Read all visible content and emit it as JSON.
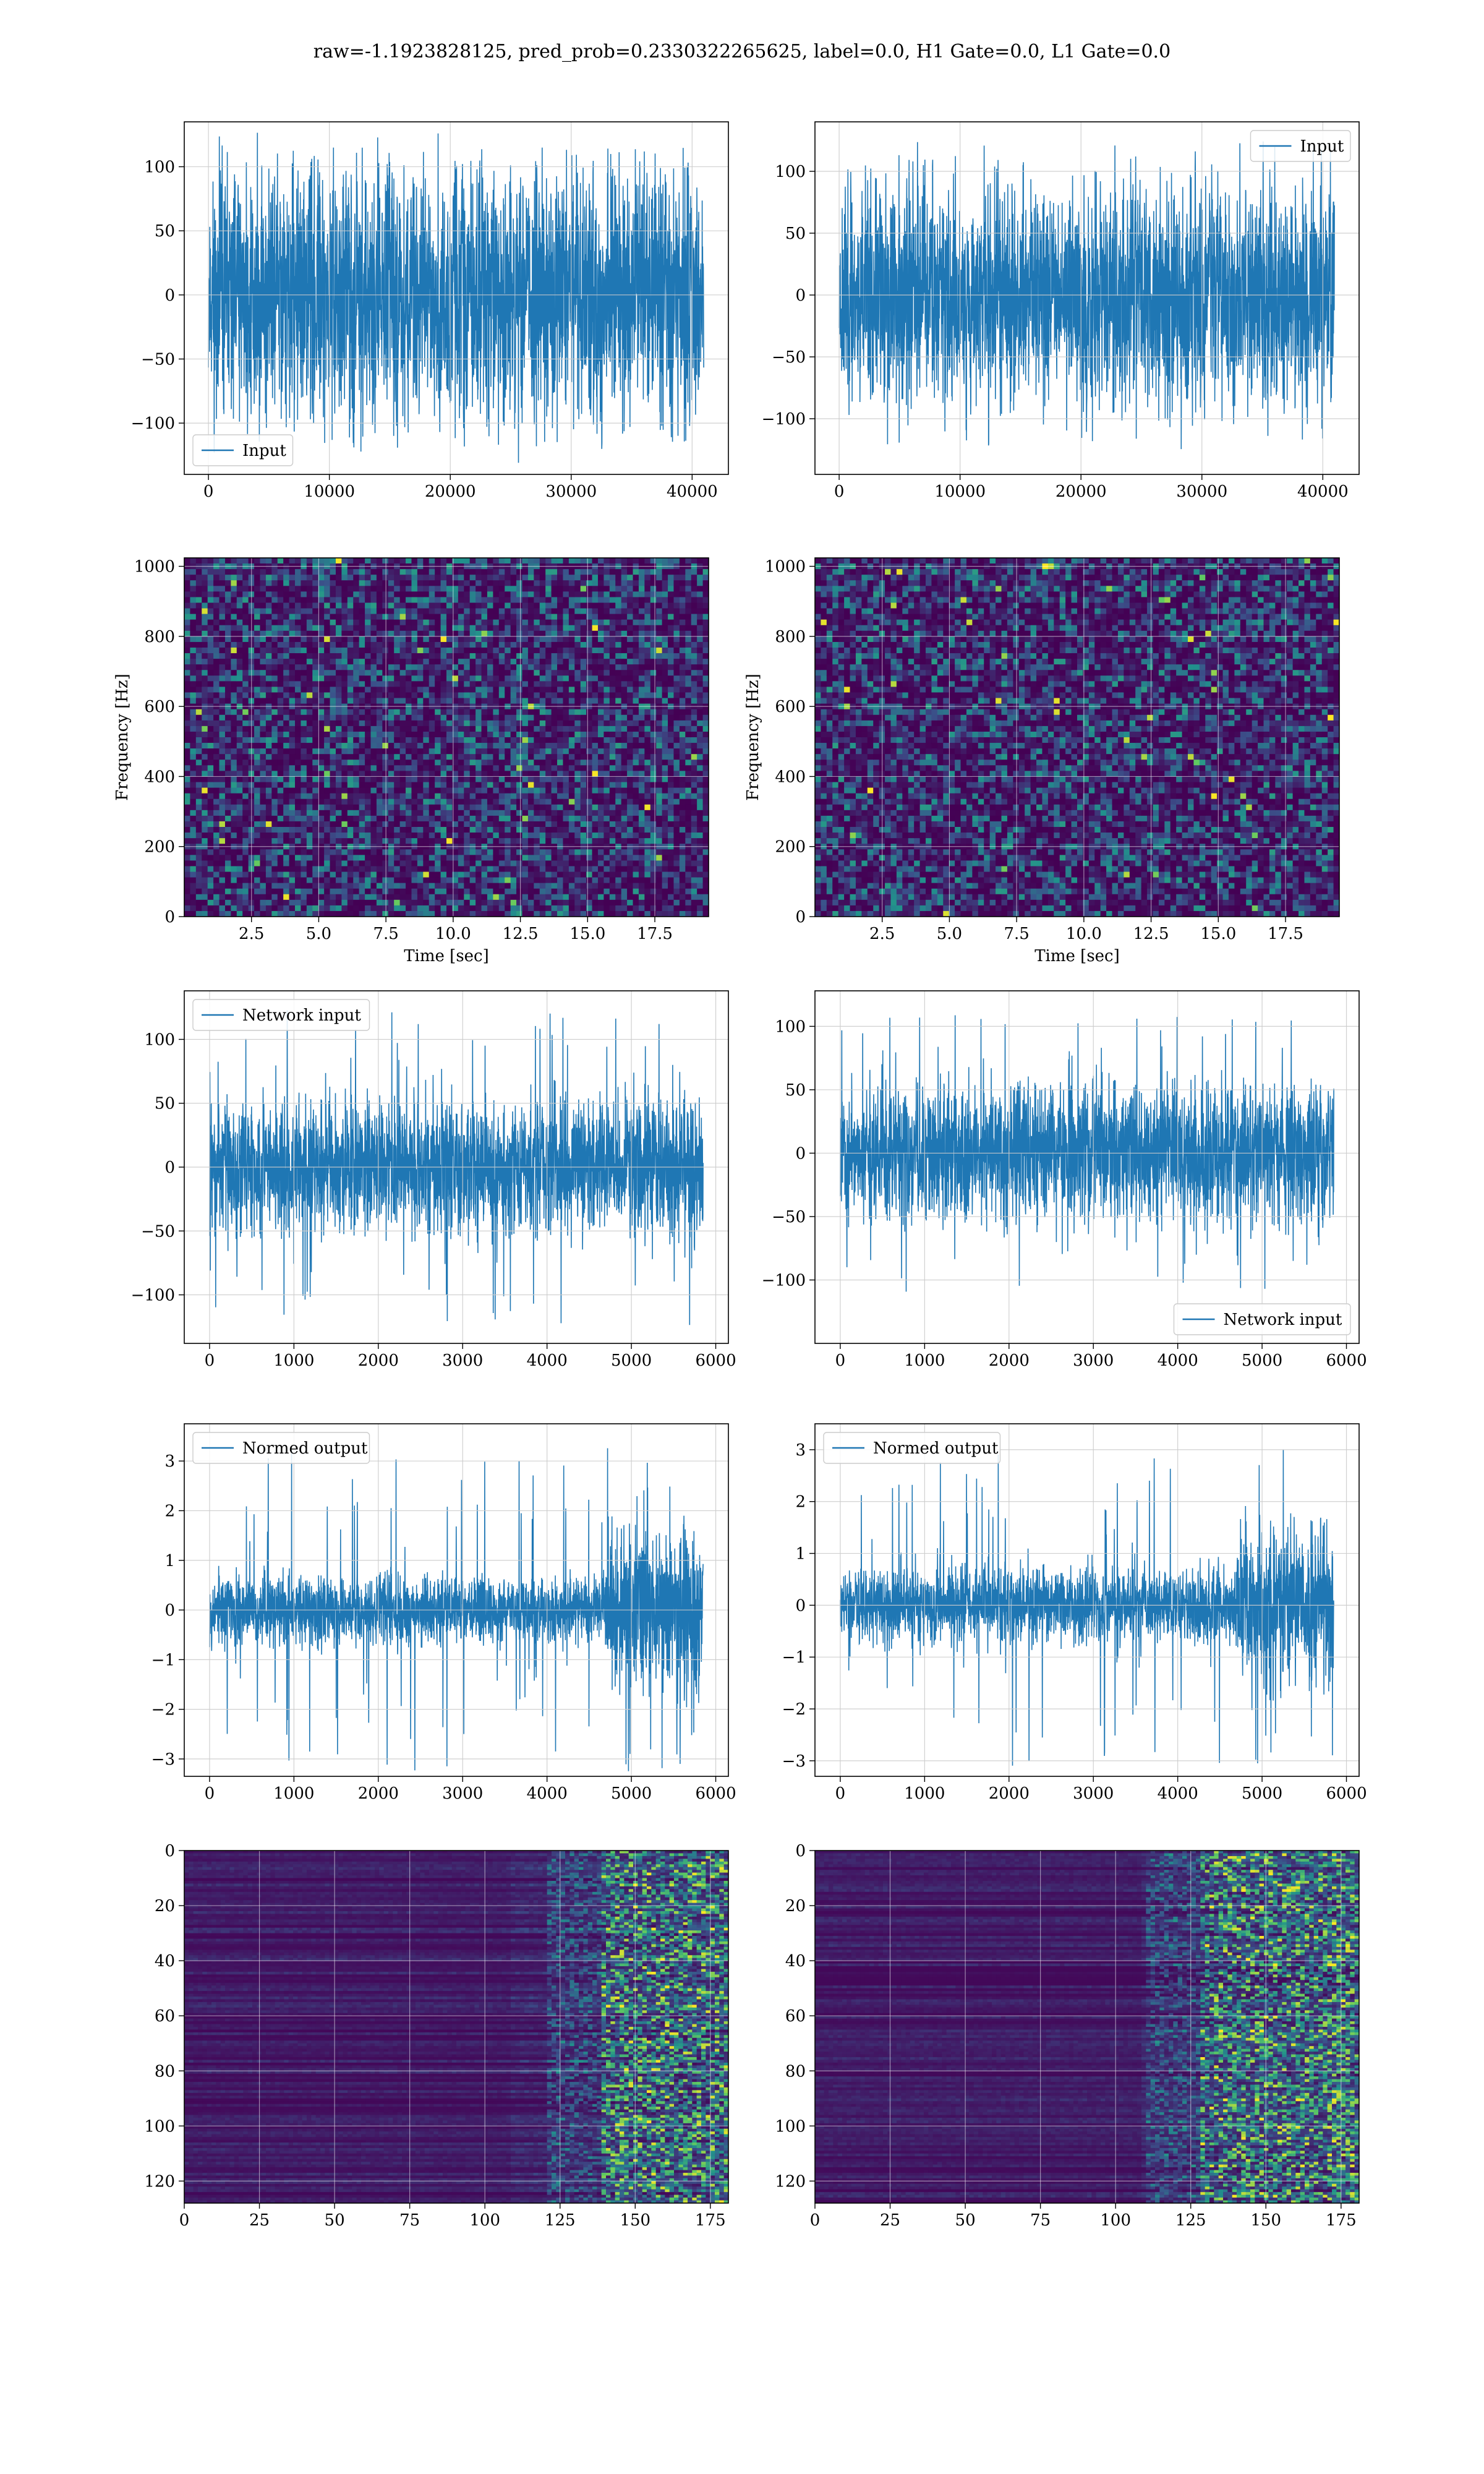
{
  "figure_title": "raw=-1.1923828125, pred_prob=0.2330322265625, label=0.0, H1 Gate=0.0, L1 Gate=0.0",
  "colors": {
    "series": "#1f77b4",
    "grid": "#cccccc",
    "viridis_dark": "#440154",
    "viridis_mid": "#3b528b",
    "viridis_teal": "#21918c",
    "viridis_green": "#5ec962",
    "viridis_yellow": "#fde725"
  },
  "chart_data": [
    {
      "id": "input_h1",
      "type": "line",
      "title": "",
      "xlabel": "",
      "ylabel": "",
      "legend": {
        "label": "Input",
        "loc": "lower-left"
      },
      "xlim": [
        -2000,
        43000
      ],
      "ylim": [
        -140,
        135
      ],
      "xticks": [
        0,
        10000,
        20000,
        30000,
        40000
      ],
      "xtick_labels": [
        "0",
        "10000",
        "20000",
        "30000",
        "40000"
      ],
      "yticks": [
        -100,
        -50,
        0,
        50,
        100
      ],
      "ytick_labels": [
        "−100",
        "−50",
        "0",
        "50",
        "100"
      ],
      "signal": {
        "x_start": 0,
        "x_end": 40960,
        "envelope": [
          [
            0,
            78
          ],
          [
            0.5,
            78
          ],
          [
            1,
            78
          ]
        ],
        "peak": 115,
        "seed": 11
      }
    },
    {
      "id": "input_l1",
      "type": "line",
      "title": "",
      "xlabel": "",
      "ylabel": "",
      "legend": {
        "label": "Input",
        "loc": "upper-right"
      },
      "xlim": [
        -2000,
        43000
      ],
      "ylim": [
        -145,
        140
      ],
      "xticks": [
        0,
        10000,
        20000,
        30000,
        40000
      ],
      "xtick_labels": [
        "0",
        "10000",
        "20000",
        "30000",
        "40000"
      ],
      "yticks": [
        -100,
        -50,
        0,
        50,
        100
      ],
      "ytick_labels": [
        "−100",
        "−50",
        "0",
        "50",
        "100"
      ],
      "signal": {
        "x_start": 0,
        "x_end": 40960,
        "envelope": [
          [
            0,
            72
          ],
          [
            0.5,
            72
          ],
          [
            1,
            72
          ]
        ],
        "peak": 125,
        "seed": 23
      }
    },
    {
      "id": "spec_h1",
      "type": "heatmap",
      "title": "",
      "xlabel": "Time [sec]",
      "ylabel": "Frequency [Hz]",
      "xlim": [
        0,
        19.5
      ],
      "ylim": [
        0,
        1024
      ],
      "xticks": [
        2.5,
        5.0,
        7.5,
        10.0,
        12.5,
        15.0,
        17.5
      ],
      "xtick_labels": [
        "2.5",
        "5.0",
        "7.5",
        "10.0",
        "12.5",
        "15.0",
        "17.5"
      ],
      "yticks": [
        0,
        200,
        400,
        600,
        800,
        1000
      ],
      "ytick_labels": [
        "0",
        "200",
        "400",
        "600",
        "800",
        "1000"
      ],
      "heat": {
        "mode": "noise",
        "seed": 5
      }
    },
    {
      "id": "spec_l1",
      "type": "heatmap",
      "title": "",
      "xlabel": "Time [sec]",
      "ylabel": "Frequency [Hz]",
      "xlim": [
        0,
        19.5
      ],
      "ylim": [
        0,
        1024
      ],
      "xticks": [
        2.5,
        5.0,
        7.5,
        10.0,
        12.5,
        15.0,
        17.5
      ],
      "xtick_labels": [
        "2.5",
        "5.0",
        "7.5",
        "10.0",
        "12.5",
        "15.0",
        "17.5"
      ],
      "yticks": [
        0,
        200,
        400,
        600,
        800,
        1000
      ],
      "ytick_labels": [
        "0",
        "200",
        "400",
        "600",
        "800",
        "1000"
      ],
      "heat": {
        "mode": "noise",
        "seed": 9
      }
    },
    {
      "id": "net_h1",
      "type": "line",
      "title": "",
      "xlabel": "",
      "ylabel": "",
      "legend": {
        "label": "Network input",
        "loc": "upper-left"
      },
      "xlim": [
        -300,
        6150
      ],
      "ylim": [
        -138,
        138
      ],
      "xticks": [
        0,
        1000,
        2000,
        3000,
        4000,
        5000,
        6000
      ],
      "xtick_labels": [
        "0",
        "1000",
        "2000",
        "3000",
        "4000",
        "5000",
        "6000"
      ],
      "yticks": [
        -100,
        -50,
        0,
        50,
        100
      ],
      "ytick_labels": [
        "−100",
        "−50",
        "0",
        "50",
        "100"
      ],
      "signal": {
        "x_start": 0,
        "x_end": 5850,
        "envelope": [
          [
            0,
            42
          ],
          [
            0.5,
            44
          ],
          [
            1,
            46
          ]
        ],
        "peak": 125,
        "seed": 31
      }
    },
    {
      "id": "net_l1",
      "type": "line",
      "title": "",
      "xlabel": "",
      "ylabel": "",
      "legend": {
        "label": "Network input",
        "loc": "lower-right"
      },
      "xlim": [
        -300,
        6150
      ],
      "ylim": [
        -150,
        128
      ],
      "xticks": [
        0,
        1000,
        2000,
        3000,
        4000,
        5000,
        6000
      ],
      "xtick_labels": [
        "0",
        "1000",
        "2000",
        "3000",
        "4000",
        "5000",
        "6000"
      ],
      "yticks": [
        -100,
        -50,
        0,
        50,
        100
      ],
      "ytick_labels": [
        "−100",
        "−50",
        "0",
        "50",
        "100"
      ],
      "signal": {
        "x_start": 0,
        "x_end": 5850,
        "envelope": [
          [
            0,
            42
          ],
          [
            0.5,
            44
          ],
          [
            1,
            44
          ]
        ],
        "peak": 110,
        "seed": 47
      }
    },
    {
      "id": "norm_h1",
      "type": "line",
      "title": "",
      "xlabel": "",
      "ylabel": "",
      "legend": {
        "label": "Normed output",
        "loc": "upper-left"
      },
      "xlim": [
        -300,
        6150
      ],
      "ylim": [
        -3.35,
        3.75
      ],
      "xticks": [
        0,
        1000,
        2000,
        3000,
        4000,
        5000,
        6000
      ],
      "xtick_labels": [
        "0",
        "1000",
        "2000",
        "3000",
        "4000",
        "5000",
        "6000"
      ],
      "yticks": [
        -3,
        -2,
        -1,
        0,
        1,
        2,
        3
      ],
      "ytick_labels": [
        "−3",
        "−2",
        "−1",
        "0",
        "1",
        "2",
        "3"
      ],
      "signal": {
        "x_start": 0,
        "x_end": 5850,
        "envelope": [
          [
            0,
            0.62
          ],
          [
            0.35,
            0.58
          ],
          [
            0.6,
            0.5
          ],
          [
            0.8,
            0.55
          ],
          [
            0.81,
            1.3
          ],
          [
            1,
            1.25
          ]
        ],
        "peak": 3.3,
        "seed": 53
      }
    },
    {
      "id": "norm_l1",
      "type": "line",
      "title": "",
      "xlabel": "",
      "ylabel": "",
      "legend": {
        "label": "Normed output",
        "loc": "upper-left"
      },
      "xlim": [
        -300,
        6150
      ],
      "ylim": [
        -3.3,
        3.5
      ],
      "xticks": [
        0,
        1000,
        2000,
        3000,
        4000,
        5000,
        6000
      ],
      "xtick_labels": [
        "0",
        "1000",
        "2000",
        "3000",
        "4000",
        "5000",
        "6000"
      ],
      "yticks": [
        -3,
        -2,
        -1,
        0,
        1,
        2,
        3
      ],
      "ytick_labels": [
        "−3",
        "−2",
        "−1",
        "0",
        "1",
        "2",
        "3"
      ],
      "signal": {
        "x_start": 0,
        "x_end": 5850,
        "envelope": [
          [
            0,
            0.58
          ],
          [
            0.35,
            0.62
          ],
          [
            0.6,
            0.6
          ],
          [
            0.8,
            0.6
          ],
          [
            0.81,
            1.2
          ],
          [
            1,
            1.25
          ]
        ],
        "peak": 3.2,
        "seed": 61
      }
    },
    {
      "id": "feat_h1",
      "type": "heatmap",
      "title": "",
      "xlabel": "",
      "ylabel": "",
      "xlim": [
        0,
        181
      ],
      "ylim": [
        128,
        0
      ],
      "xticks": [
        0,
        25,
        50,
        75,
        100,
        125,
        150,
        175
      ],
      "xtick_labels": [
        "0",
        "25",
        "50",
        "75",
        "100",
        "125",
        "150",
        "175"
      ],
      "yticks": [
        0,
        20,
        40,
        60,
        80,
        100,
        120
      ],
      "ytick_labels": [
        "0",
        "20",
        "40",
        "60",
        "80",
        "100",
        "120"
      ],
      "heat": {
        "mode": "features",
        "seed": 71,
        "onset": 0.76
      }
    },
    {
      "id": "feat_l1",
      "type": "heatmap",
      "title": "",
      "xlabel": "",
      "ylabel": "",
      "xlim": [
        0,
        181
      ],
      "ylim": [
        128,
        0
      ],
      "xticks": [
        0,
        25,
        50,
        75,
        100,
        125,
        150,
        175
      ],
      "xtick_labels": [
        "0",
        "25",
        "50",
        "75",
        "100",
        "125",
        "150",
        "175"
      ],
      "yticks": [
        0,
        20,
        40,
        60,
        80,
        100,
        120
      ],
      "ytick_labels": [
        "0",
        "20",
        "40",
        "60",
        "80",
        "100",
        "120"
      ],
      "heat": {
        "mode": "features",
        "seed": 83,
        "onset": 0.7
      }
    }
  ]
}
